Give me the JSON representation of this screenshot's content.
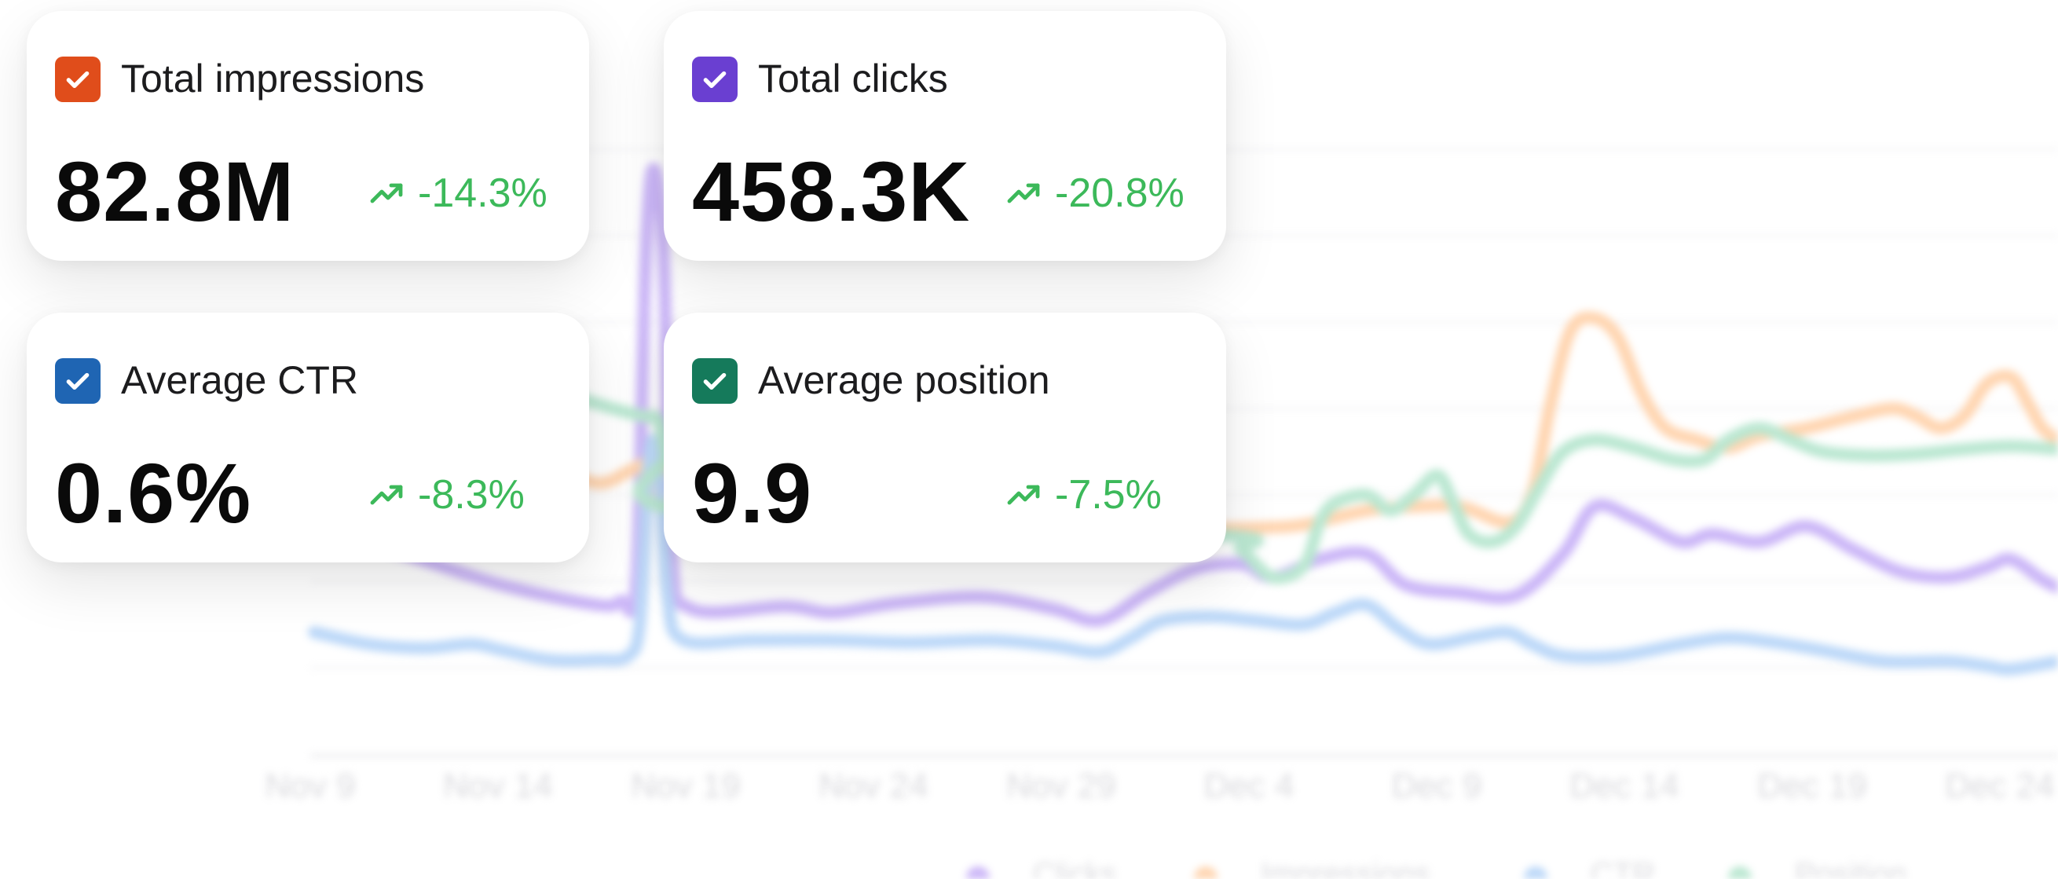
{
  "cards": [
    {
      "label": "Total impressions",
      "value": "82.8M",
      "change": "-14.3%",
      "color": "#e04d1b"
    },
    {
      "label": "Total clicks",
      "value": "458.3K",
      "change": "-20.8%",
      "color": "#6a3fd1"
    },
    {
      "label": "Average CTR",
      "value": "0.6%",
      "change": "-8.3%",
      "color": "#1f65b3"
    },
    {
      "label": "Average position",
      "value": "9.9",
      "change": "-7.5%",
      "color": "#157a5b"
    }
  ],
  "trend_color": "#3cb95a",
  "chart_data": {
    "type": "line",
    "x_ticks": [
      "Nov 9",
      "Nov 14",
      "Nov 19",
      "Nov 24",
      "Nov 29",
      "Dec 4",
      "Dec 9",
      "Dec 14",
      "Dec 19",
      "Dec 24"
    ],
    "series": [
      {
        "name": "Clicks",
        "color": "#c9b3f7"
      },
      {
        "name": "Impressions",
        "color": "#ffd3ad"
      },
      {
        "name": "CTR",
        "color": "#b9d6f8"
      },
      {
        "name": "Position",
        "color": "#b7e6cf"
      }
    ],
    "grid": true,
    "legend_position": "bottom"
  }
}
